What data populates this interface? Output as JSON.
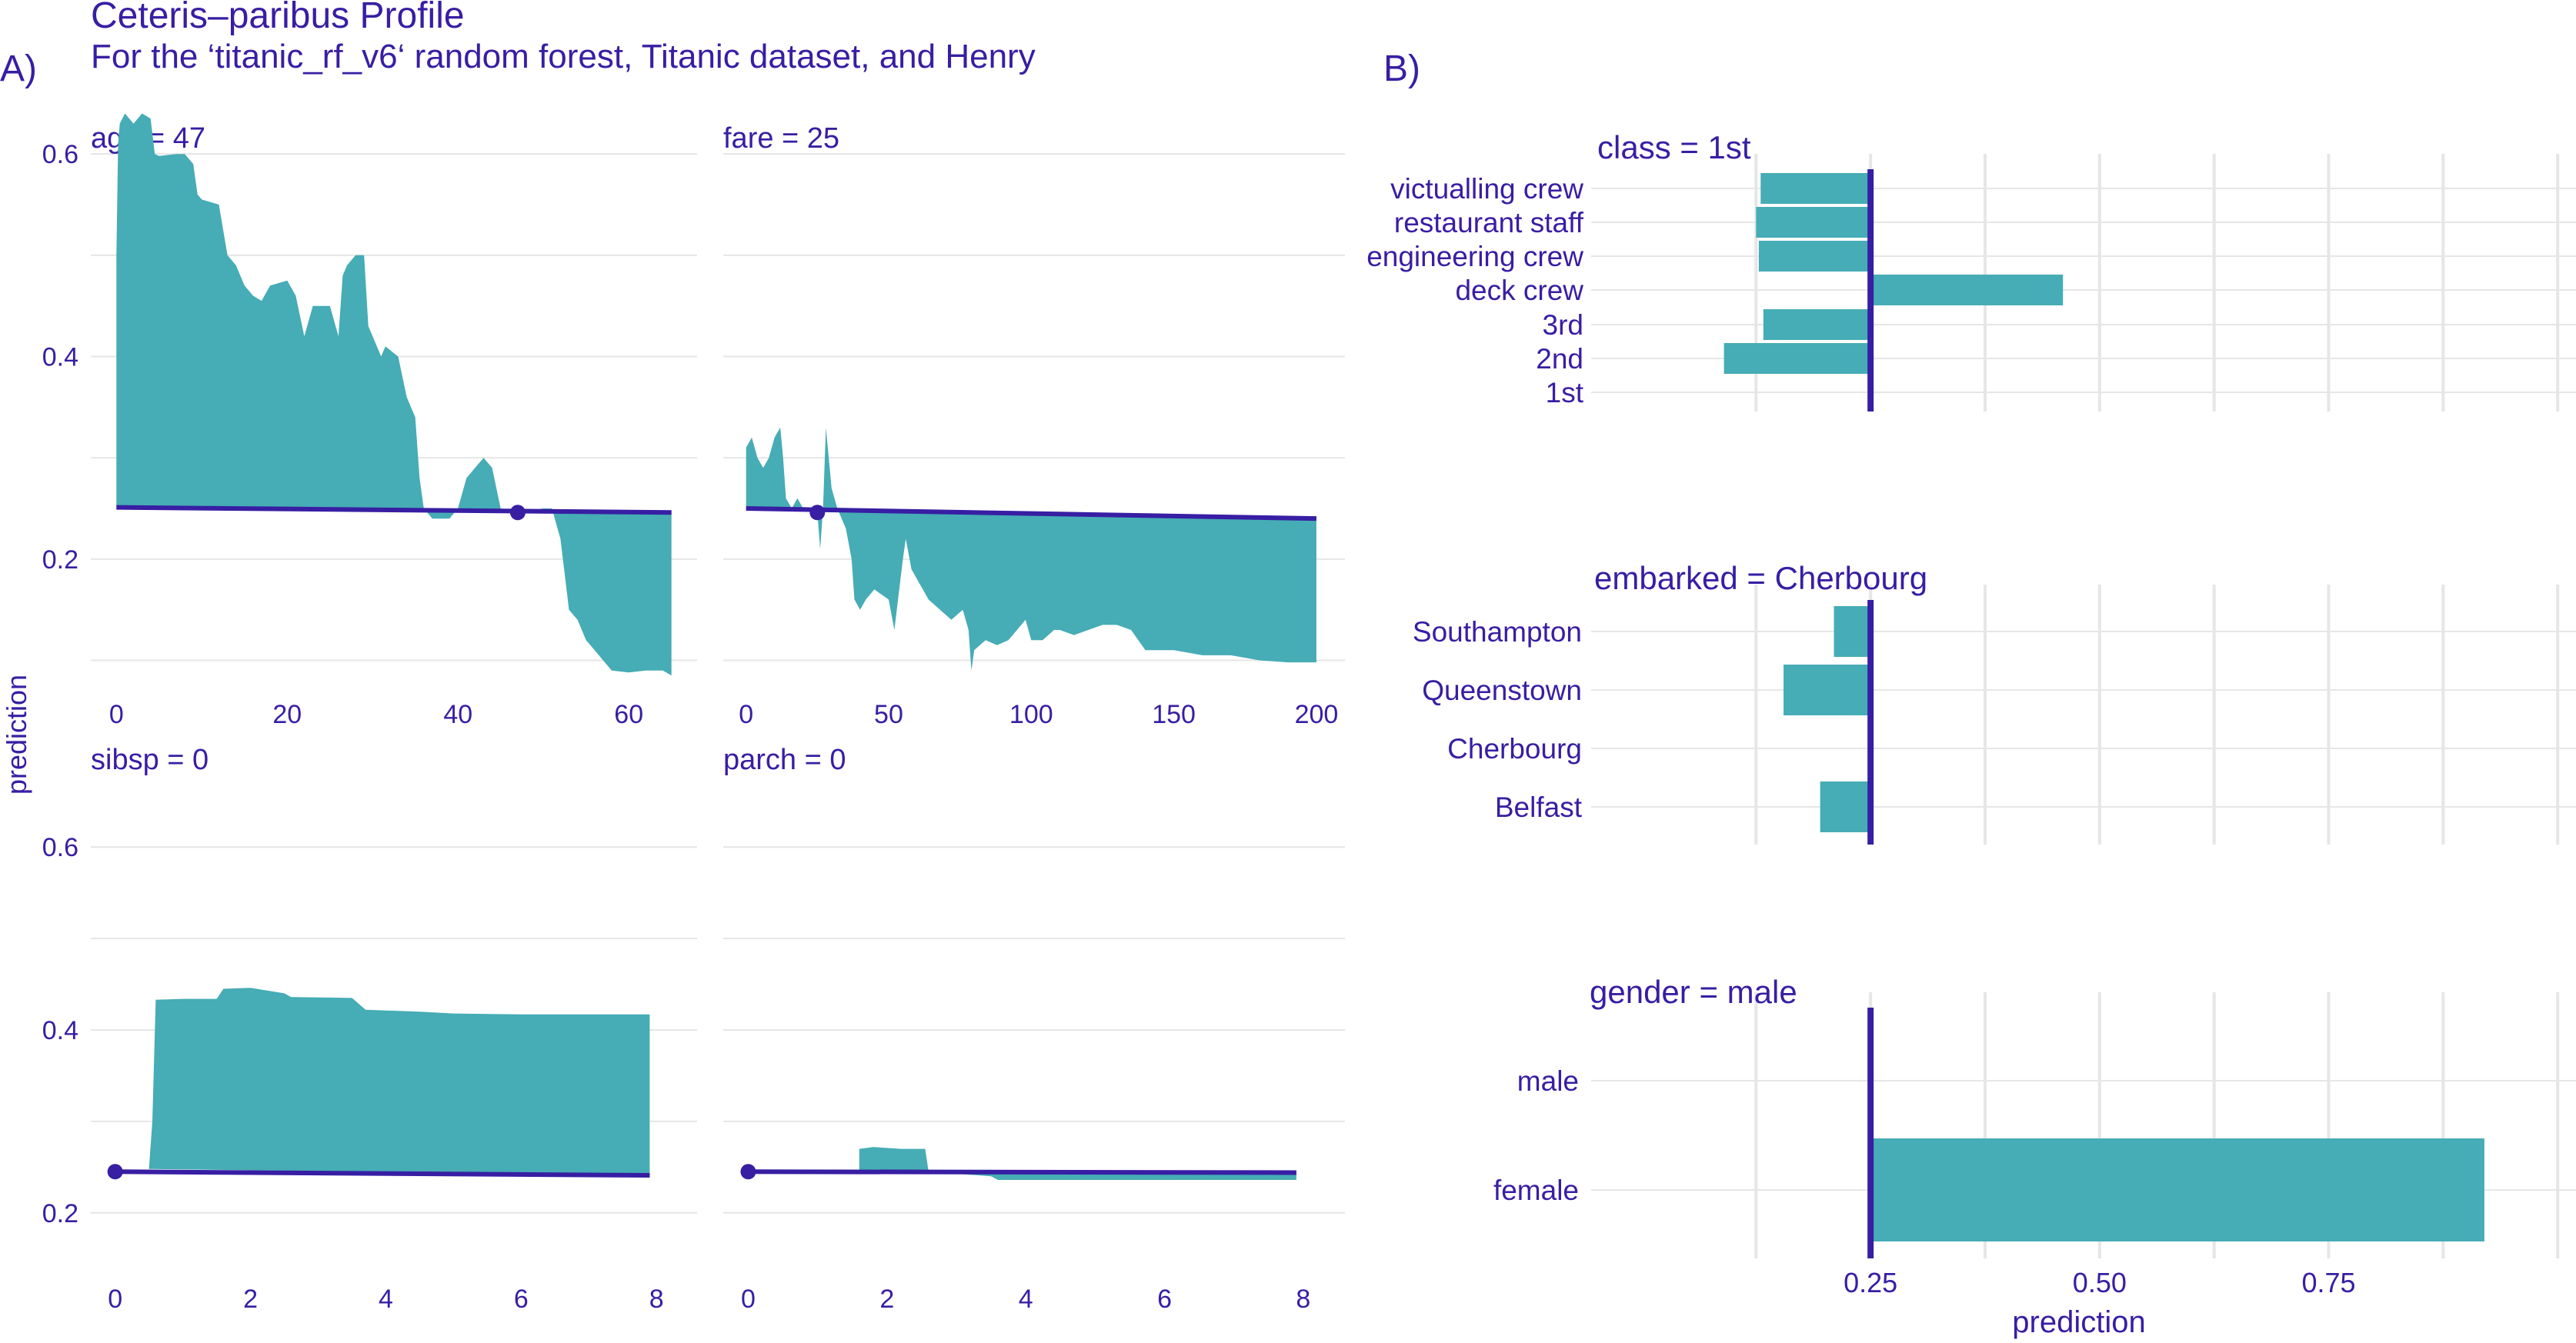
{
  "figure": {
    "title": "Ceteris–paribus Profile",
    "subtitle": "For the ‘titanic_rf_v6‘ random forest, Titanic dataset, and Henry",
    "panel_a_label": "A)",
    "panel_b_label": "B)",
    "a_ylabel": "prediction",
    "b_xlabel": "prediction"
  },
  "colors": {
    "text": "#371ea3",
    "profile_fill": "#46acb5",
    "baseline": "#371ea3",
    "grid": "#e6e6e6"
  },
  "chart_data": [
    {
      "id": "age",
      "type": "area",
      "title": "age = 47",
      "observation": {
        "x": 47,
        "y": 0.246
      },
      "xlim": [
        -3,
        68
      ],
      "ylim": [
        0.07,
        0.67
      ],
      "xticks": [
        0,
        20,
        40,
        60
      ],
      "yticks": [
        0.2,
        0.4,
        0.6
      ],
      "ygrid": [
        0.1,
        0.2,
        0.3,
        0.4,
        0.5,
        0.6
      ],
      "profile": [
        [
          0,
          0.251
        ],
        [
          0,
          0.5
        ],
        [
          0.2,
          0.61
        ],
        [
          0.4,
          0.63
        ],
        [
          1,
          0.64
        ],
        [
          2,
          0.63
        ],
        [
          3,
          0.64
        ],
        [
          4,
          0.635
        ],
        [
          4.5,
          0.6
        ],
        [
          5,
          0.598
        ],
        [
          7,
          0.6
        ],
        [
          8,
          0.6
        ],
        [
          9,
          0.59
        ],
        [
          9.5,
          0.56
        ],
        [
          10,
          0.555
        ],
        [
          12,
          0.55
        ],
        [
          13,
          0.5
        ],
        [
          14,
          0.49
        ],
        [
          15,
          0.47
        ],
        [
          16,
          0.46
        ],
        [
          17,
          0.455
        ],
        [
          18,
          0.47
        ],
        [
          20,
          0.475
        ],
        [
          21,
          0.46
        ],
        [
          22,
          0.42
        ],
        [
          23,
          0.45
        ],
        [
          25,
          0.45
        ],
        [
          26,
          0.42
        ],
        [
          26.5,
          0.48
        ],
        [
          27,
          0.49
        ],
        [
          28,
          0.5
        ],
        [
          29,
          0.5
        ],
        [
          29.5,
          0.43
        ],
        [
          31,
          0.4
        ],
        [
          31.5,
          0.41
        ],
        [
          33,
          0.4
        ],
        [
          34,
          0.36
        ],
        [
          35,
          0.34
        ],
        [
          35.5,
          0.28
        ],
        [
          36,
          0.25
        ],
        [
          37,
          0.24
        ],
        [
          39,
          0.24
        ],
        [
          40,
          0.25
        ],
        [
          41,
          0.28
        ],
        [
          42,
          0.29
        ],
        [
          43,
          0.3
        ],
        [
          44,
          0.29
        ],
        [
          45,
          0.25
        ],
        [
          47,
          0.246
        ],
        [
          50,
          0.25
        ],
        [
          51,
          0.25
        ],
        [
          52,
          0.22
        ],
        [
          53,
          0.15
        ],
        [
          54,
          0.14
        ],
        [
          55,
          0.12
        ],
        [
          57,
          0.1
        ],
        [
          58,
          0.09
        ],
        [
          60,
          0.088
        ],
        [
          62,
          0.09
        ],
        [
          64,
          0.09
        ],
        [
          65,
          0.085
        ],
        [
          65,
          0.246
        ]
      ],
      "baseline": [
        [
          0,
          0.251
        ],
        [
          65,
          0.246
        ]
      ]
    },
    {
      "id": "fare",
      "type": "area",
      "title": "fare = 25",
      "observation": {
        "x": 25,
        "y": 0.246
      },
      "xlim": [
        -8,
        210
      ],
      "ylim": [
        0.07,
        0.67
      ],
      "xticks": [
        0,
        50,
        100,
        150,
        200
      ],
      "yticks": [],
      "ygrid": [
        0.1,
        0.2,
        0.3,
        0.4,
        0.5,
        0.6
      ],
      "profile": [
        [
          0,
          0.25
        ],
        [
          0,
          0.31
        ],
        [
          2,
          0.32
        ],
        [
          4,
          0.3
        ],
        [
          6,
          0.29
        ],
        [
          8,
          0.3
        ],
        [
          10,
          0.32
        ],
        [
          12,
          0.33
        ],
        [
          13,
          0.3
        ],
        [
          14,
          0.26
        ],
        [
          16,
          0.25
        ],
        [
          18,
          0.26
        ],
        [
          20,
          0.25
        ],
        [
          22,
          0.248
        ],
        [
          25,
          0.246
        ],
        [
          26,
          0.21
        ],
        [
          27,
          0.25
        ],
        [
          28,
          0.33
        ],
        [
          29,
          0.3
        ],
        [
          30,
          0.27
        ],
        [
          32,
          0.25
        ],
        [
          35,
          0.23
        ],
        [
          37,
          0.2
        ],
        [
          38,
          0.16
        ],
        [
          40,
          0.15
        ],
        [
          42,
          0.16
        ],
        [
          45,
          0.17
        ],
        [
          50,
          0.16
        ],
        [
          52,
          0.13
        ],
        [
          55,
          0.2
        ],
        [
          56,
          0.22
        ],
        [
          58,
          0.19
        ],
        [
          60,
          0.18
        ],
        [
          64,
          0.16
        ],
        [
          68,
          0.15
        ],
        [
          72,
          0.14
        ],
        [
          76,
          0.15
        ],
        [
          78,
          0.13
        ],
        [
          79,
          0.09
        ],
        [
          80,
          0.11
        ],
        [
          84,
          0.12
        ],
        [
          88,
          0.115
        ],
        [
          92,
          0.12
        ],
        [
          95,
          0.13
        ],
        [
          98,
          0.14
        ],
        [
          100,
          0.12
        ],
        [
          104,
          0.12
        ],
        [
          108,
          0.13
        ],
        [
          110,
          0.13
        ],
        [
          115,
          0.125
        ],
        [
          120,
          0.13
        ],
        [
          125,
          0.135
        ],
        [
          130,
          0.135
        ],
        [
          135,
          0.13
        ],
        [
          140,
          0.11
        ],
        [
          150,
          0.11
        ],
        [
          160,
          0.105
        ],
        [
          170,
          0.105
        ],
        [
          180,
          0.1
        ],
        [
          190,
          0.098
        ],
        [
          200,
          0.098
        ],
        [
          200,
          0.24
        ]
      ],
      "baseline": [
        [
          0,
          0.25
        ],
        [
          200,
          0.24
        ]
      ]
    },
    {
      "id": "sibsp",
      "type": "area",
      "title": "sibsp = 0",
      "observation": {
        "x": 0,
        "y": 0.245
      },
      "xlim": [
        -0.36,
        8.6
      ],
      "ylim": [
        0.13,
        0.67
      ],
      "xticks": [
        0,
        2,
        4,
        6,
        8
      ],
      "yticks": [
        0.2,
        0.4,
        0.6
      ],
      "ygrid": [
        0.2,
        0.3,
        0.4,
        0.5,
        0.6
      ],
      "profile": [
        [
          0.5,
          0.248
        ],
        [
          0.55,
          0.3
        ],
        [
          0.6,
          0.433
        ],
        [
          1,
          0.434
        ],
        [
          1.5,
          0.434
        ],
        [
          1.6,
          0.445
        ],
        [
          2,
          0.446
        ],
        [
          2.5,
          0.44
        ],
        [
          2.6,
          0.436
        ],
        [
          3.5,
          0.435
        ],
        [
          3.7,
          0.422
        ],
        [
          4.5,
          0.42
        ],
        [
          5,
          0.418
        ],
        [
          6,
          0.417
        ],
        [
          7,
          0.417
        ],
        [
          7.9,
          0.417
        ],
        [
          7.9,
          0.241
        ]
      ],
      "baseline": [
        [
          0,
          0.245
        ],
        [
          7.9,
          0.241
        ]
      ]
    },
    {
      "id": "parch",
      "type": "area",
      "title": "parch = 0",
      "observation": {
        "x": 0,
        "y": 0.245
      },
      "xlim": [
        -0.36,
        8.6
      ],
      "ylim": [
        0.13,
        0.67
      ],
      "xticks": [
        0,
        2,
        4,
        6,
        8
      ],
      "yticks": [],
      "ygrid": [
        0.2,
        0.3,
        0.4,
        0.5,
        0.6
      ],
      "profile": [
        [
          1.6,
          0.246
        ],
        [
          1.6,
          0.27
        ],
        [
          1.8,
          0.272
        ],
        [
          2.2,
          0.27
        ],
        [
          2.55,
          0.27
        ],
        [
          2.6,
          0.245
        ],
        [
          3.5,
          0.24
        ],
        [
          3.6,
          0.236
        ],
        [
          5,
          0.236
        ],
        [
          6,
          0.236
        ],
        [
          7.9,
          0.236
        ],
        [
          7.9,
          0.244
        ]
      ],
      "baseline": [
        [
          0,
          0.245
        ],
        [
          7.9,
          0.244
        ]
      ]
    },
    {
      "id": "class",
      "type": "bar",
      "title": "class = 1st",
      "baseline": 0.25,
      "categories": [
        "victualling crew",
        "restaurant staff",
        "engineering crew",
        "deck crew",
        "3rd",
        "2nd",
        "1st"
      ],
      "values": [
        0.13,
        0.125,
        0.128,
        0.46,
        0.133,
        0.09,
        0.25
      ]
    },
    {
      "id": "embarked",
      "type": "bar",
      "title": "embarked = Cherbourg",
      "baseline": 0.25,
      "categories": [
        "Southampton",
        "Queenstown",
        "Cherbourg",
        "Belfast"
      ],
      "values": [
        0.21,
        0.155,
        0.25,
        0.195
      ]
    },
    {
      "id": "gender",
      "type": "bar",
      "title": "gender = male",
      "baseline": 0.25,
      "categories": [
        "male",
        "female"
      ],
      "values": [
        0.25,
        0.92
      ]
    }
  ],
  "bar_axis": {
    "xlim": [
      -0.055,
      1.02
    ],
    "gridlines": [
      0.125,
      0.25,
      0.375,
      0.5,
      0.625,
      0.75,
      0.875,
      1.0
    ],
    "ticks": [
      0.25,
      0.5,
      0.75
    ],
    "tick_labels": [
      "0.25",
      "0.50",
      "0.75"
    ]
  }
}
